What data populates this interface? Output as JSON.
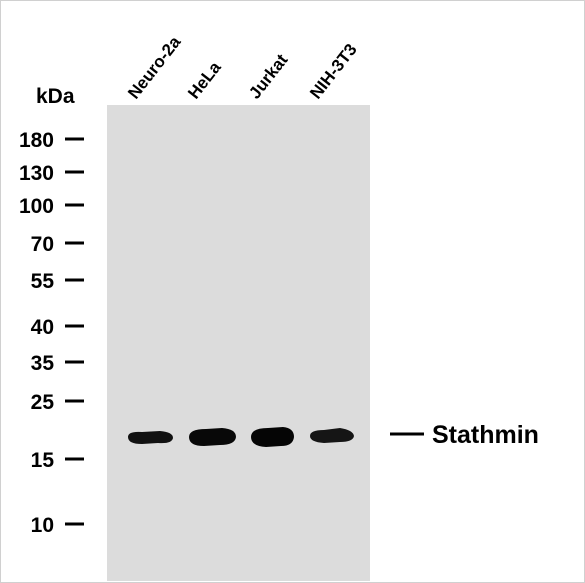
{
  "unit_label": "kDa",
  "markers": [
    "180",
    "130",
    "100",
    "70",
    "55",
    "40",
    "35",
    "25",
    "15",
    "10"
  ],
  "lanes": [
    "Neuro-2a",
    "HeLa",
    "Jurkat",
    "NIH-3T3"
  ],
  "band_label": "Stathmin"
}
